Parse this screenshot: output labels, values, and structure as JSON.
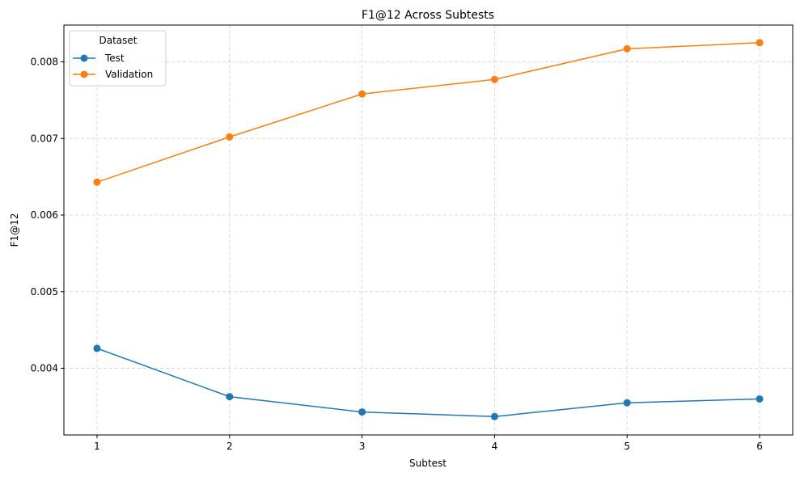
{
  "chart_data": {
    "type": "line",
    "title": "F1@12 Across Subtests",
    "xlabel": "Subtest",
    "ylabel": "F1@12",
    "x": [
      1,
      2,
      3,
      4,
      5,
      6
    ],
    "x_ticks": [
      "1",
      "2",
      "3",
      "4",
      "5",
      "6"
    ],
    "y_ticks": [
      "0.004",
      "0.005",
      "0.006",
      "0.007",
      "0.008"
    ],
    "y_tick_values": [
      0.004,
      0.005,
      0.006,
      0.007,
      0.008
    ],
    "xlim": [
      0.75,
      6.25
    ],
    "ylim": [
      0.00313,
      0.00848
    ],
    "grid": true,
    "legend": {
      "title": "Dataset",
      "placement": "top-left"
    },
    "series": [
      {
        "name": "Test",
        "color": "#1f77b4",
        "values": [
          0.00426,
          0.00363,
          0.00343,
          0.00337,
          0.00355,
          0.0036
        ]
      },
      {
        "name": "Validation",
        "color": "#ff7f0e",
        "values": [
          0.00643,
          0.00702,
          0.00758,
          0.00777,
          0.00817,
          0.00825
        ]
      }
    ]
  }
}
